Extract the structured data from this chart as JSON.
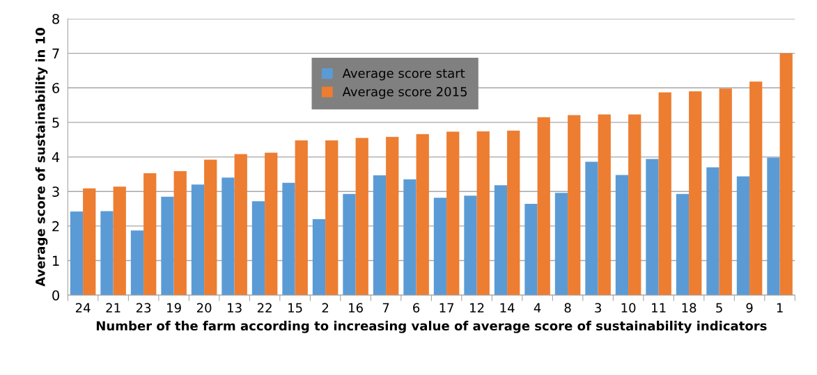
{
  "chart_data": {
    "type": "bar",
    "xlabel": "Number of the farm according to increasing value of average score of sustainability indicators",
    "ylabel": "Average score of sustainability in 10",
    "categories": [
      "24",
      "21",
      "23",
      "19",
      "20",
      "13",
      "22",
      "15",
      "2",
      "16",
      "7",
      "6",
      "17",
      "12",
      "14",
      "4",
      "8",
      "3",
      "10",
      "11",
      "18",
      "5",
      "9",
      "1"
    ],
    "series": [
      {
        "name": "Average score start",
        "color": "#5b9bd5",
        "values": [
          2.42,
          2.43,
          1.87,
          2.85,
          3.2,
          3.4,
          2.72,
          3.25,
          2.2,
          2.93,
          3.47,
          3.35,
          2.82,
          2.88,
          3.18,
          2.64,
          2.96,
          3.86,
          3.48,
          3.94,
          2.93,
          3.7,
          3.44,
          3.98
        ]
      },
      {
        "name": "Average score 2015",
        "color": "#ed7d31",
        "values": [
          3.09,
          3.14,
          3.53,
          3.59,
          3.92,
          4.08,
          4.12,
          4.48,
          4.48,
          4.55,
          4.58,
          4.66,
          4.73,
          4.74,
          4.76,
          5.15,
          5.21,
          5.23,
          5.23,
          5.87,
          5.9,
          5.98,
          6.18,
          7.0
        ]
      }
    ],
    "ylim": [
      0,
      8
    ],
    "yticks": [
      0,
      1,
      2,
      3,
      4,
      5,
      6,
      7,
      8
    ],
    "grid": "y",
    "legend": "top"
  }
}
